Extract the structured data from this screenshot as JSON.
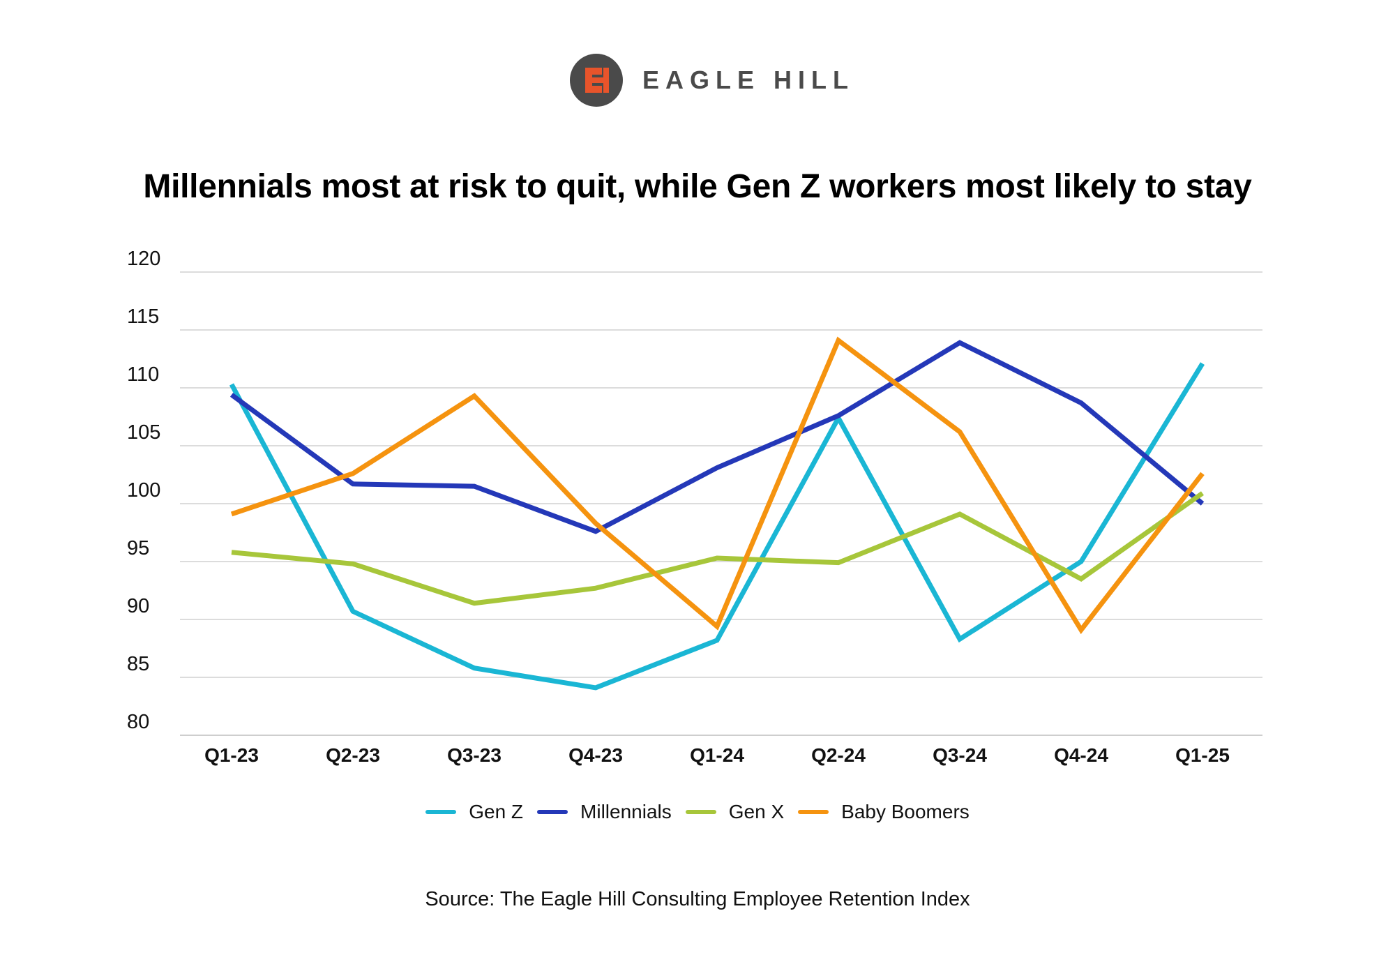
{
  "brand": {
    "name": "EAGLE HILL",
    "mark_color": "#e8542b",
    "mark_bg": "#4a4a4a"
  },
  "title": "Millennials most at risk to quit, while Gen Z workers most likely to stay",
  "source": "Source: The Eagle Hill Consulting Employee Retention Index",
  "chart_data": {
    "type": "line",
    "title": "Millennials most at risk to quit, while Gen Z workers most likely to stay",
    "xlabel": "",
    "ylabel": "",
    "categories": [
      "Q1-23",
      "Q2-23",
      "Q3-23",
      "Q4-23",
      "Q1-24",
      "Q2-24",
      "Q3-24",
      "Q4-24",
      "Q1-25"
    ],
    "ylim": [
      80,
      120
    ],
    "yticks": [
      80,
      85,
      90,
      95,
      100,
      105,
      110,
      115,
      120
    ],
    "grid": true,
    "legend_position": "bottom",
    "series": [
      {
        "name": "Gen Z",
        "color": "#1ab6d4",
        "values": [
          110.3,
          90.7,
          85.8,
          84.1,
          88.2,
          107.4,
          88.3,
          95.0,
          112.1
        ]
      },
      {
        "name": "Millennials",
        "color": "#2438b8",
        "values": [
          109.4,
          101.7,
          101.5,
          97.6,
          103.1,
          107.6,
          113.9,
          108.7,
          100.0
        ]
      },
      {
        "name": "Gen X",
        "color": "#a7c63a",
        "values": [
          95.8,
          94.8,
          91.4,
          92.7,
          95.3,
          94.9,
          99.1,
          93.5,
          100.9
        ]
      },
      {
        "name": "Baby Boomers",
        "color": "#f5930f",
        "values": [
          99.1,
          102.6,
          109.3,
          98.3,
          89.4,
          114.1,
          106.2,
          89.1,
          102.6
        ]
      }
    ]
  }
}
